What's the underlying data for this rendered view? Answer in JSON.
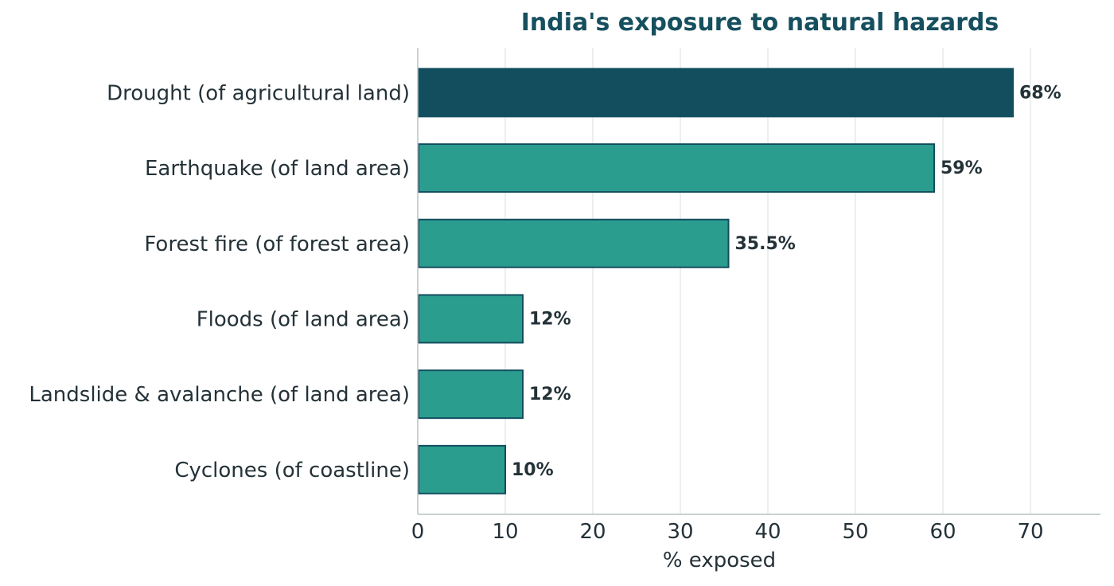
{
  "chart_data": {
    "type": "bar",
    "orientation": "horizontal",
    "title": "India's exposure to natural hazards",
    "xlabel": "% exposed",
    "ylabel": "",
    "xlim": [
      0,
      78
    ],
    "xticks": [
      0,
      10,
      20,
      30,
      40,
      50,
      60,
      70
    ],
    "grid": "vertical",
    "categories": [
      "Drought (of agricultural land)",
      "Earthquake (of land area)",
      "Forest fire (of forest area)",
      "Floods (of land area)",
      "Landslide & avalanche (of land area)",
      "Cyclones (of coastline)"
    ],
    "values": [
      68,
      59,
      35.5,
      12,
      12,
      10
    ],
    "data_labels": [
      "68%",
      "59%",
      "35.5%",
      "12%",
      "12%",
      "10%"
    ],
    "highlight_index": 0
  },
  "colors": {
    "title": "#164f5e",
    "text": "#243238",
    "highlight_bar": "#134e5e",
    "bar": "#2a9d8f",
    "bar_edge": "#134e5e",
    "grid": "#e6eaea",
    "axis": "#b6c2c4"
  }
}
